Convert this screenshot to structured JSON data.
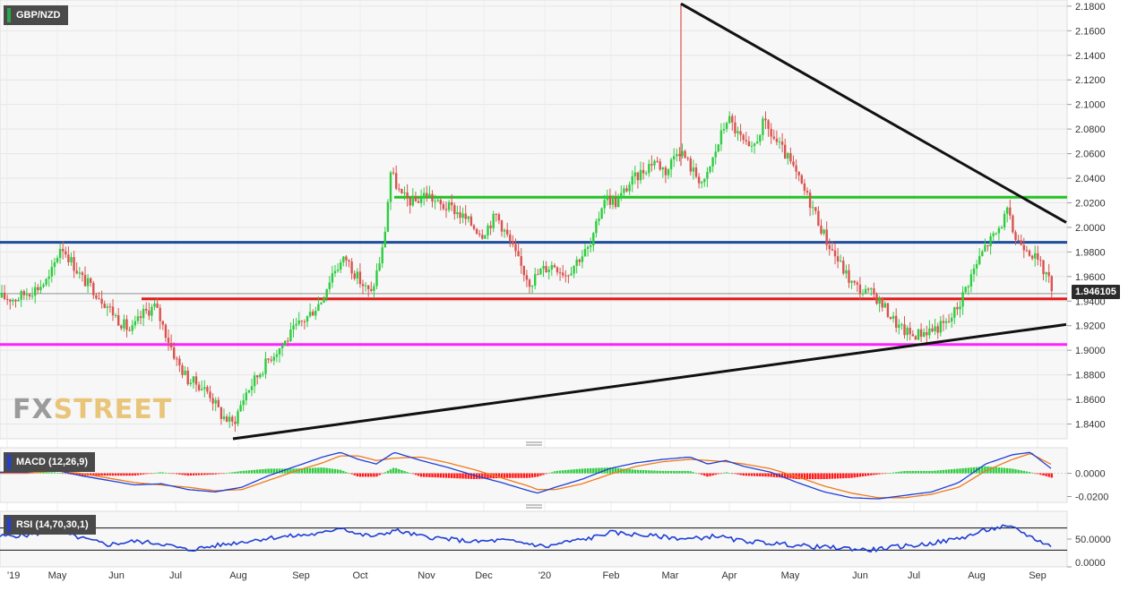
{
  "symbol": "GBP/NZD",
  "last_price_label": "1.946105",
  "watermark": {
    "prefix": "FX",
    "suffix": "STREET"
  },
  "colors": {
    "bull": "#2ecc40",
    "bear": "#d9534f",
    "support_red": "#e31b1b",
    "support_magenta": "#ff22ff",
    "resistance_green": "#22c322",
    "pivot_blue": "#1d4e9a",
    "trendline": "#111111",
    "macd_line": "#1f3fd6",
    "signal_line": "#f07a1a",
    "rsi_line": "#1f3fd6"
  },
  "chart_data": [
    {
      "type": "line",
      "title": "GBP/NZD",
      "series_kind": "candlestick",
      "x_labels": [
        "'19",
        "May",
        "Jun",
        "Jul",
        "Aug",
        "Sep",
        "Oct",
        "Nov",
        "Dec",
        "'20",
        "Feb",
        "Mar",
        "Apr",
        "May",
        "Jun",
        "Jul",
        "Aug",
        "Sep"
      ],
      "y_ticks": [
        "2.1800",
        "2.1600",
        "2.1400",
        "2.1200",
        "2.1000",
        "2.0800",
        "2.0600",
        "2.0400",
        "2.0200",
        "2.0000",
        "1.9800",
        "1.9600",
        "1.9400",
        "1.9200",
        "1.9000",
        "1.8800",
        "1.8600",
        "1.8400"
      ],
      "ylim": [
        1.828,
        2.185
      ],
      "path_x": [
        0,
        18,
        30,
        42,
        55,
        68,
        80,
        92,
        104,
        118,
        132,
        146,
        160,
        173,
        186,
        198,
        210,
        222,
        234,
        246,
        260,
        274,
        288,
        302,
        316,
        330,
        344,
        358,
        372,
        386,
        400,
        414,
        428,
        436,
        448,
        462,
        476,
        490,
        506,
        522,
        538,
        554,
        568,
        580,
        592,
        604,
        618,
        632,
        646,
        660,
        674,
        688,
        702,
        716,
        730,
        744,
        756,
        762,
        774,
        786,
        800,
        812,
        824,
        838,
        852,
        866,
        880,
        894,
        908,
        922,
        936,
        950,
        962,
        976,
        990,
        1004,
        1018,
        1030,
        1044,
        1058,
        1072,
        1080,
        1090,
        1100,
        1112,
        1124,
        1134,
        1146,
        1158,
        1168,
        1176
      ],
      "path_y": [
        1.943,
        1.942,
        1.947,
        1.951,
        1.958,
        1.986,
        1.972,
        1.958,
        1.95,
        1.938,
        1.925,
        1.915,
        1.93,
        1.936,
        1.912,
        1.89,
        1.876,
        1.872,
        1.865,
        1.848,
        1.84,
        1.865,
        1.88,
        1.895,
        1.905,
        1.918,
        1.928,
        1.94,
        1.965,
        1.975,
        1.958,
        1.945,
        1.985,
        2.045,
        2.025,
        2.02,
        2.028,
        2.018,
        2.015,
        2.005,
        1.995,
        2.01,
        1.99,
        1.97,
        1.955,
        1.965,
        1.97,
        1.962,
        1.975,
        1.985,
        2.025,
        2.02,
        2.035,
        2.045,
        2.055,
        2.045,
        2.065,
        2.06,
        2.045,
        2.035,
        2.065,
        2.09,
        2.075,
        2.06,
        2.085,
        2.07,
        2.055,
        2.035,
        2.015,
        1.99,
        1.972,
        1.955,
        1.948,
        1.945,
        1.932,
        1.918,
        1.912,
        1.915,
        1.918,
        1.922,
        1.94,
        1.955,
        1.97,
        1.985,
        1.995,
        2.012,
        1.99,
        1.985,
        1.972,
        1.962,
        1.948
      ],
      "spike_high": {
        "x": 760,
        "value": 2.182
      },
      "horizontal_levels": [
        {
          "value": 2.0245,
          "color_key": "resistance_green",
          "x_start": 440
        },
        {
          "value": 1.9878,
          "color_key": "pivot_blue",
          "x_start": 0
        },
        {
          "value": 1.9418,
          "color_key": "support_red",
          "x_start": 158
        },
        {
          "value": 1.9047,
          "color_key": "support_magenta",
          "x_start": 0
        }
      ],
      "trendlines": [
        {
          "x1": 760,
          "y1": 2.182,
          "x2": 1190,
          "y2": 2.004
        },
        {
          "x1": 260,
          "y1": 1.828,
          "x2": 1190,
          "y2": 1.921
        }
      ]
    },
    {
      "type": "line",
      "title": "MACD (12,26,9)",
      "y_ticks": [
        "0.0000",
        "-0.0200"
      ],
      "ylim": [
        -0.025,
        0.022
      ],
      "path_x": [
        0,
        30,
        60,
        90,
        120,
        150,
        180,
        210,
        240,
        270,
        300,
        330,
        360,
        380,
        400,
        420,
        440,
        470,
        500,
        530,
        560,
        590,
        600,
        620,
        650,
        680,
        710,
        740,
        770,
        790,
        810,
        830,
        860,
        890,
        920,
        950,
        980,
        1010,
        1040,
        1070,
        1100,
        1130,
        1150,
        1175
      ],
      "macd": [
        0.001,
        0.001,
        0.003,
        -0.002,
        -0.006,
        -0.01,
        -0.009,
        -0.014,
        -0.016,
        -0.012,
        -0.002,
        0.006,
        0.014,
        0.018,
        0.012,
        0.008,
        0.018,
        0.011,
        0.005,
        -0.002,
        -0.008,
        -0.015,
        -0.017,
        -0.012,
        -0.005,
        0.004,
        0.009,
        0.012,
        0.014,
        0.008,
        0.011,
        0.006,
        0.001,
        -0.008,
        -0.016,
        -0.021,
        -0.022,
        -0.019,
        -0.016,
        -0.008,
        0.008,
        0.016,
        0.018,
        0.003
      ],
      "signal": [
        0.0,
        0.0,
        0.002,
        0.0,
        -0.004,
        -0.008,
        -0.01,
        -0.012,
        -0.015,
        -0.014,
        -0.006,
        0.002,
        0.009,
        0.015,
        0.015,
        0.011,
        0.013,
        0.014,
        0.009,
        0.003,
        -0.004,
        -0.011,
        -0.014,
        -0.014,
        -0.009,
        -0.001,
        0.006,
        0.01,
        0.012,
        0.011,
        0.01,
        0.008,
        0.004,
        -0.003,
        -0.011,
        -0.017,
        -0.021,
        -0.021,
        -0.018,
        -0.012,
        0.002,
        0.012,
        0.017,
        0.007
      ]
    },
    {
      "type": "line",
      "title": "RSI (14,70,30,1)",
      "y_ticks": [
        "50.0000",
        "0.0000"
      ],
      "levels": [
        70,
        30
      ],
      "ylim": [
        0,
        100
      ],
      "path_x": [
        0,
        30,
        60,
        90,
        120,
        150,
        180,
        210,
        240,
        270,
        300,
        330,
        360,
        380,
        400,
        420,
        440,
        470,
        500,
        530,
        560,
        590,
        610,
        630,
        660,
        680,
        710,
        740,
        770,
        800,
        820,
        850,
        880,
        910,
        940,
        970,
        1000,
        1030,
        1060,
        1080,
        1100,
        1120,
        1135,
        1150,
        1175
      ],
      "values": [
        55,
        57,
        65,
        52,
        40,
        46,
        42,
        30,
        38,
        45,
        52,
        56,
        60,
        72,
        58,
        55,
        66,
        55,
        50,
        45,
        48,
        42,
        36,
        44,
        52,
        62,
        58,
        54,
        50,
        56,
        48,
        44,
        40,
        36,
        34,
        30,
        36,
        40,
        48,
        55,
        66,
        72,
        68,
        54,
        36
      ]
    }
  ]
}
